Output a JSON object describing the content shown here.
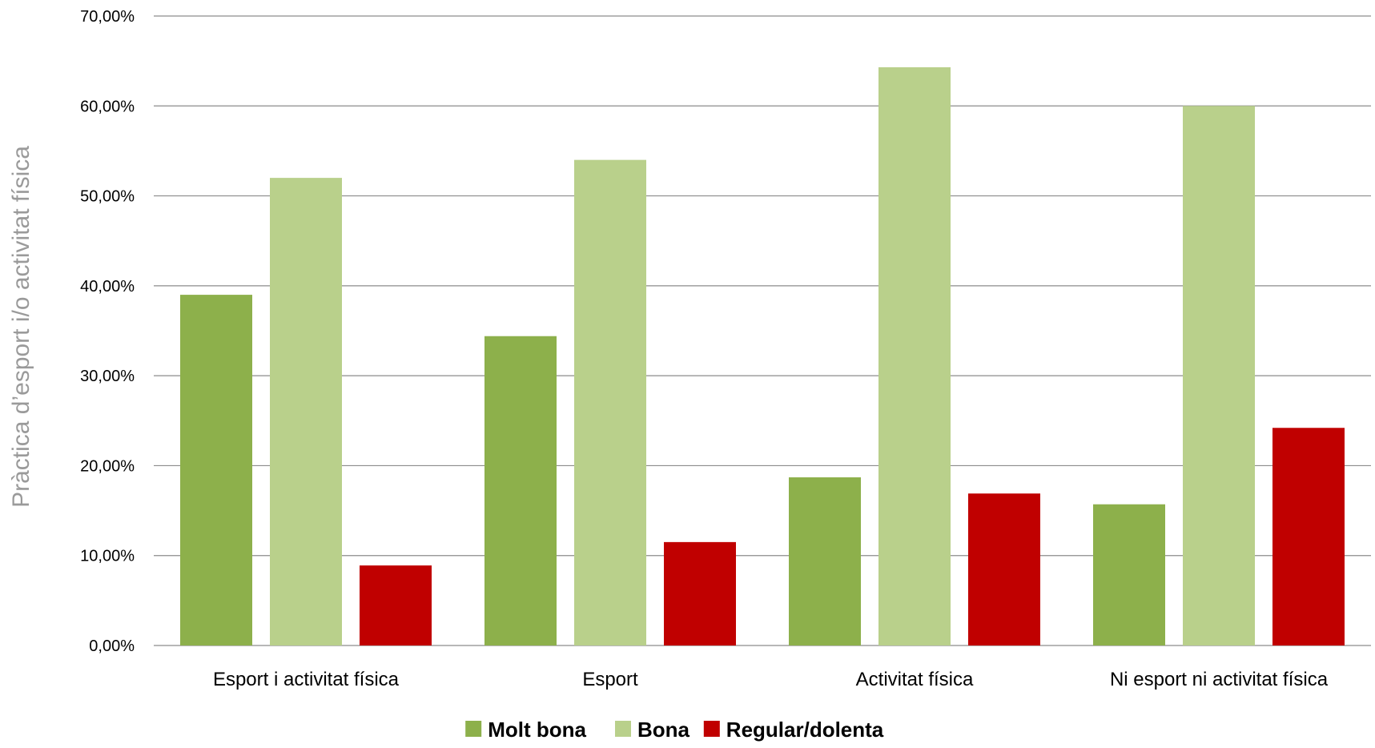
{
  "chart_data": {
    "type": "bar",
    "title": "",
    "xlabel": "",
    "ylabel": "Pràctica d’esport i/o activitat física",
    "ylim": [
      0,
      70
    ],
    "yticks": [
      "0,00%",
      "10,00%",
      "20,00%",
      "30,00%",
      "40,00%",
      "50,00%",
      "60,00%",
      "70,00%"
    ],
    "ytick_values": [
      0,
      10,
      20,
      30,
      40,
      50,
      60,
      70
    ],
    "grid": true,
    "legend_position": "bottom",
    "categories": [
      "Esport i activitat física",
      "Esport",
      "Activitat física",
      "Ni esport ni activitat física"
    ],
    "series": [
      {
        "name": "Molt bona",
        "color": "#8db04b",
        "values": [
          39.0,
          34.4,
          18.7,
          15.7
        ]
      },
      {
        "name": "Bona",
        "color": "#b9d08b",
        "values": [
          52.0,
          54.0,
          64.3,
          60.0
        ]
      },
      {
        "name": "Regular/dolenta",
        "color": "#c00000",
        "values": [
          8.9,
          11.5,
          16.9,
          24.2
        ]
      }
    ]
  }
}
